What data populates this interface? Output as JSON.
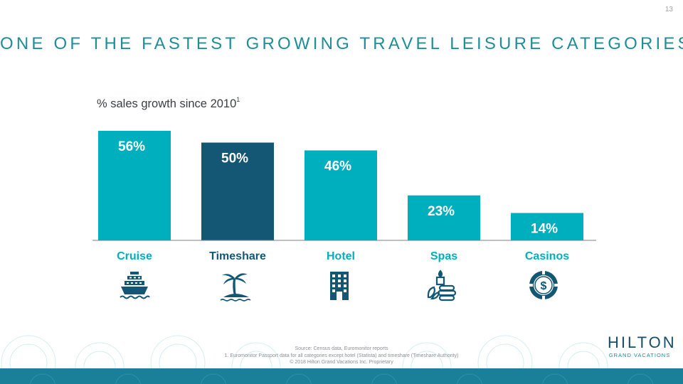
{
  "page": {
    "number": "13",
    "title": "ONE OF THE FASTEST GROWING TRAVEL LEISURE CATEGORIES",
    "source_lines": [
      "Source: Census data, Euromonitor reports",
      "1. Euromonitor Passport data for all categories except hotel (Statista) and timeshare (Timeshare Authority)",
      "© 2018 Hilton Grand Vacations Inc. Proprietary"
    ],
    "logo": {
      "main": "HILTON",
      "sub": "GRAND VACATIONS"
    }
  },
  "chart_data": {
    "type": "bar",
    "title": "% sales growth since 2010",
    "title_superscript": "1",
    "categories": [
      "Cruise",
      "Timeshare",
      "Hotel",
      "Spas",
      "Casinos"
    ],
    "values": [
      56,
      50,
      46,
      23,
      14
    ],
    "data_labels": [
      "56%",
      "50%",
      "46%",
      "23%",
      "14%"
    ],
    "ylim": [
      0,
      56
    ],
    "grid": false,
    "legend": "none",
    "colors": [
      "#00afbd",
      "#145775",
      "#00afbd",
      "#00afbd",
      "#00afbd"
    ],
    "label_colors": [
      "#00afbd",
      "#145775",
      "#00afbd",
      "#00afbd",
      "#00afbd"
    ],
    "icons": [
      "cruise-ship-icon",
      "palm-island-icon",
      "hotel-building-icon",
      "spa-stones-icon",
      "casino-chip-icon"
    ]
  },
  "colors": {
    "teal": "#00afbd",
    "navy": "#145775",
    "title": "#1f8e99",
    "footer": "#1a7f99"
  }
}
